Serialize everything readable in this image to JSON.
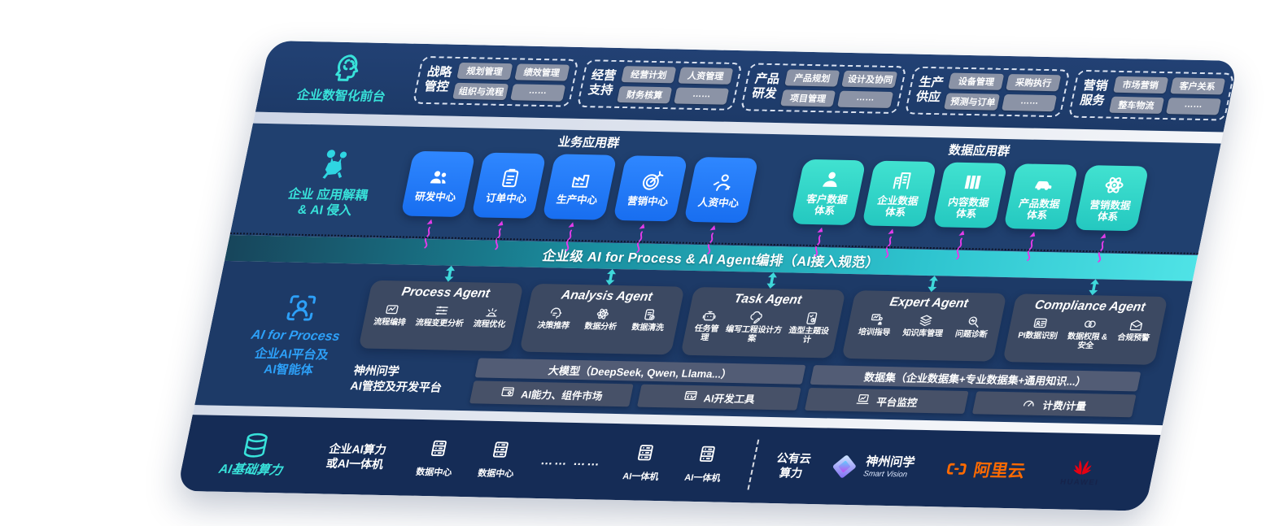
{
  "front": {
    "label": "企业数智化前台",
    "groups": [
      {
        "name": "战略管控",
        "tags": [
          "规划管理",
          "绩效管理",
          "组织与流程",
          "……"
        ]
      },
      {
        "name": "经营支持",
        "tags": [
          "经营计划",
          "人资管理",
          "财务核算",
          "……"
        ]
      },
      {
        "name": "产品研发",
        "tags": [
          "产品规划",
          "设计及协同",
          "项目管理",
          "……"
        ]
      },
      {
        "name": "生产供应",
        "tags": [
          "设备管理",
          "采购执行",
          "预测与订单",
          "……"
        ]
      },
      {
        "name": "营销服务",
        "tags": [
          "市场营销",
          "客户关系",
          "整车物流",
          "……"
        ]
      }
    ]
  },
  "apps": {
    "label": "企业 应用解耦\n& AI 侵入",
    "business_title": "业务应用群",
    "business": [
      {
        "label": "研发中心",
        "icon": "team-icon"
      },
      {
        "label": "订单中心",
        "icon": "order-icon"
      },
      {
        "label": "生产中心",
        "icon": "production-icon"
      },
      {
        "label": "营销中心",
        "icon": "marketing-icon"
      },
      {
        "label": "人资中心",
        "icon": "hr-icon"
      }
    ],
    "data_title": "数据应用群",
    "data": [
      {
        "label": "客户数据\n体系",
        "icon": "customer-icon"
      },
      {
        "label": "企业数据\n体系",
        "icon": "enterprise-icon"
      },
      {
        "label": "内容数据\n体系",
        "icon": "content-icon"
      },
      {
        "label": "产品数据\n体系",
        "icon": "product-icon"
      },
      {
        "label": "营销数据\n体系",
        "icon": "marketing-data-icon"
      }
    ]
  },
  "band": {
    "title": "企业级 AI for Process & AI Agent编排（AI接入规范）"
  },
  "agents": {
    "label_en": "AI for Process",
    "label_cn": "企业AI平台及\nAI智能体",
    "list": [
      {
        "title": "Process Agent",
        "items": [
          {
            "label": "流程编排",
            "icon": "flow-orchestration-icon"
          },
          {
            "label": "流程变更分析",
            "icon": "flow-change-icon"
          },
          {
            "label": "流程优化",
            "icon": "flow-optimize-icon"
          }
        ]
      },
      {
        "title": "Analysis Agent",
        "items": [
          {
            "label": "决策推荐",
            "icon": "decision-icon"
          },
          {
            "label": "数据分析",
            "icon": "data-analysis-icon"
          },
          {
            "label": "数据清洗",
            "icon": "data-clean-icon"
          }
        ]
      },
      {
        "title": "Task Agent",
        "items": [
          {
            "label": "任务管理",
            "icon": "task-icon"
          },
          {
            "label": "编写工程设计方案",
            "icon": "design-doc-icon"
          },
          {
            "label": "造型主题设计",
            "icon": "theme-design-icon"
          }
        ]
      },
      {
        "title": "Expert Agent",
        "items": [
          {
            "label": "培训指导",
            "icon": "training-icon"
          },
          {
            "label": "知识库管理",
            "icon": "knowledge-icon"
          },
          {
            "label": "问题诊断",
            "icon": "diagnosis-icon"
          }
        ]
      },
      {
        "title": "Compliance Agent",
        "items": [
          {
            "label": "PI数据识别",
            "icon": "pi-data-icon"
          },
          {
            "label": "数据权限 &\n安全",
            "icon": "permission-icon"
          },
          {
            "label": "合规预警",
            "icon": "alert-icon"
          }
        ]
      }
    ]
  },
  "platform": {
    "label": "神州问学\nAI管控及开发平台",
    "model_bar": "大模型（DeepSeek, Qwen, Llama...）",
    "model_cells": [
      {
        "label": "AI能力、组件市场",
        "icon": "component-market-icon"
      },
      {
        "label": "AI开发工具",
        "icon": "dev-tools-icon"
      }
    ],
    "data_bar": "数据集（企业数据集+专业数据集+通用知识...）",
    "data_cells": [
      {
        "label": "平台监控",
        "icon": "monitor-icon"
      },
      {
        "label": "计费/计量",
        "icon": "metering-icon"
      }
    ]
  },
  "compute": {
    "label": "AI基础算力",
    "cluster_label": "企业AI算力\n或AI一体机",
    "servers": [
      {
        "label": "数据中心"
      },
      {
        "label": "数据中心"
      },
      {
        "label": "AI一体机"
      },
      {
        "label": "AI一体机"
      }
    ],
    "ellipsis": "…… ……",
    "cloud_label": "公有云\n算力",
    "vendors": {
      "smartvision": {
        "name": "神州问学",
        "sub": "Smart Vision"
      },
      "aliyun": {
        "name": "阿里云"
      },
      "huawei": {
        "name": "HUAWEI"
      }
    }
  },
  "colors": {
    "panel_navy": "#1d3a68",
    "bottom_navy": "#152c56",
    "teal_accent": "#38e2da",
    "blue_accent": "#2da0f8",
    "box_blue": "#1c76f2",
    "box_teal": "#2fd6c9",
    "band_teal": "#2ec4cf",
    "magenta_arrow": "#e23ce9",
    "tag_gray": "#8b93a6",
    "aliyun_orange": "#ff6a00",
    "huawei_red": "#e60012"
  }
}
